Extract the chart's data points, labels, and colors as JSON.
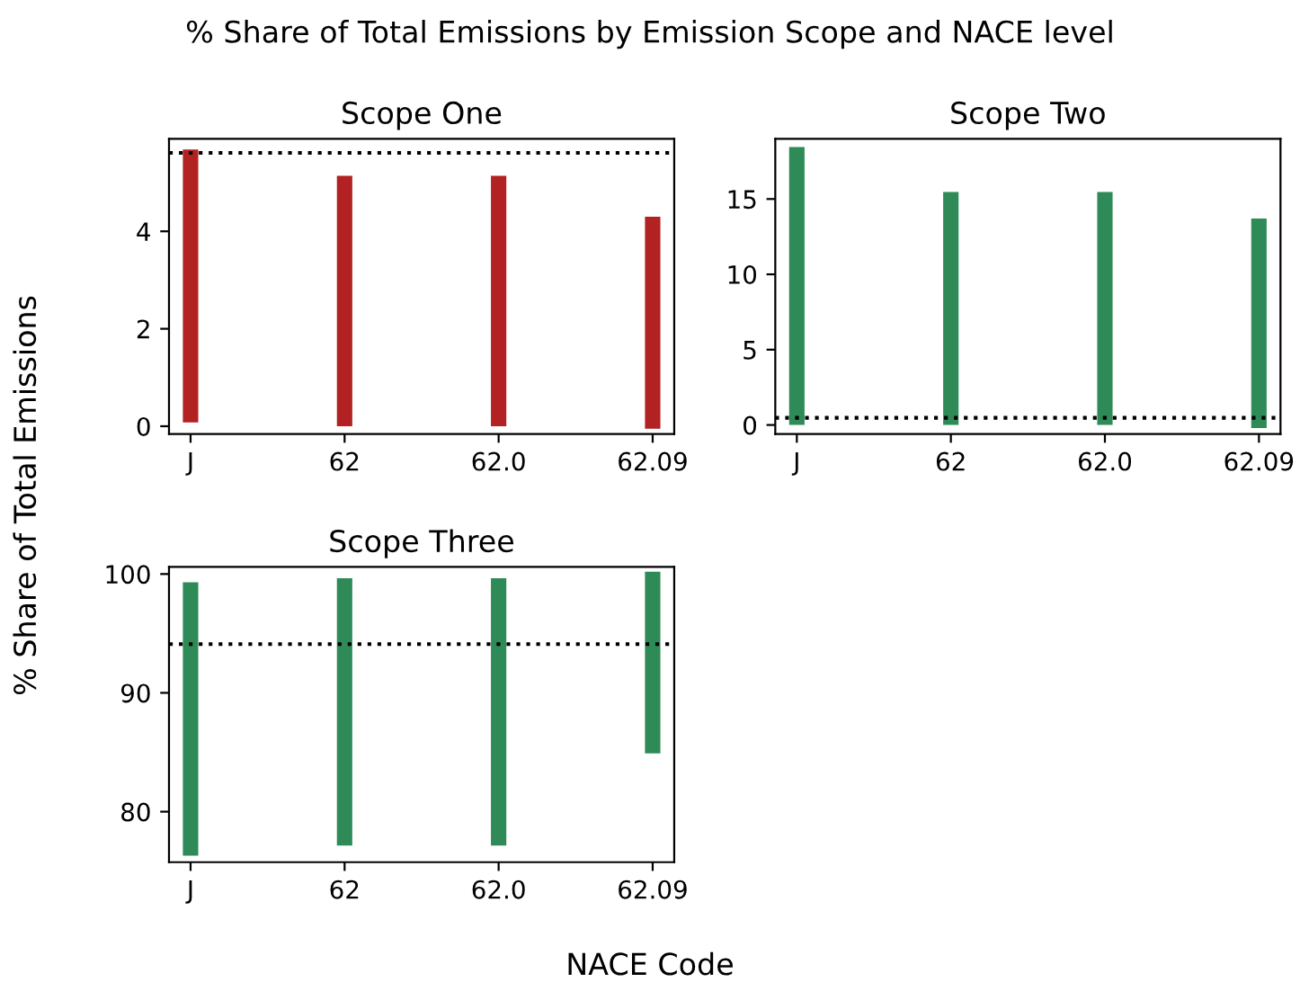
{
  "chart_data": [
    {
      "type": "bar",
      "title": "Scope One",
      "annotations": [
        "% Share of Total Emissions by Emission Scope and NACE level"
      ],
      "categories": [
        "J",
        "62",
        "62.0",
        "62.09"
      ],
      "series": [
        {
          "color": "#b22222",
          "values": [
            5.6,
            5.14,
            5.14,
            4.35
          ],
          "base": [
            0.08,
            0,
            0,
            -0.05
          ]
        }
      ],
      "ylim": [
        -0.16,
        5.9
      ],
      "yticks": [
        0,
        2,
        4
      ],
      "grid": false,
      "ref_lines": [
        {
          "axis": "y",
          "value": 5.61,
          "color": "#000000",
          "line_style": "dotted"
        }
      ]
    },
    {
      "type": "bar",
      "title": "Scope Two",
      "categories": [
        "J",
        "62",
        "62.0",
        "62.09"
      ],
      "series": [
        {
          "color": "#2e8b57",
          "values": [
            18.45,
            15.47,
            15.47,
            13.9
          ],
          "base": [
            0,
            0,
            0,
            -0.2
          ]
        }
      ],
      "ylim": [
        -0.6,
        19.0
      ],
      "yticks": [
        0,
        5,
        10,
        15
      ],
      "grid": false,
      "ref_lines": [
        {
          "axis": "y",
          "value": 0.47,
          "color": "#000000",
          "line_style": "dotted"
        }
      ]
    },
    {
      "type": "bar",
      "title": "Scope Three",
      "xlabel": "NACE Code",
      "ylabel": "% Share of Total Emissions",
      "categories": [
        "J",
        "62",
        "62.0",
        "62.09"
      ],
      "series": [
        {
          "color": "#2e8b57",
          "values": [
            23.0,
            22.5,
            22.5,
            15.3
          ],
          "base": [
            76.3,
            77.15,
            77.15,
            84.9
          ]
        }
      ],
      "ylim": [
        75.75,
        100.6
      ],
      "yticks": [
        80,
        90,
        100
      ],
      "grid": false,
      "ref_lines": [
        {
          "axis": "y",
          "value": 94.1,
          "color": "#000000",
          "line_style": "dotted"
        }
      ]
    }
  ]
}
